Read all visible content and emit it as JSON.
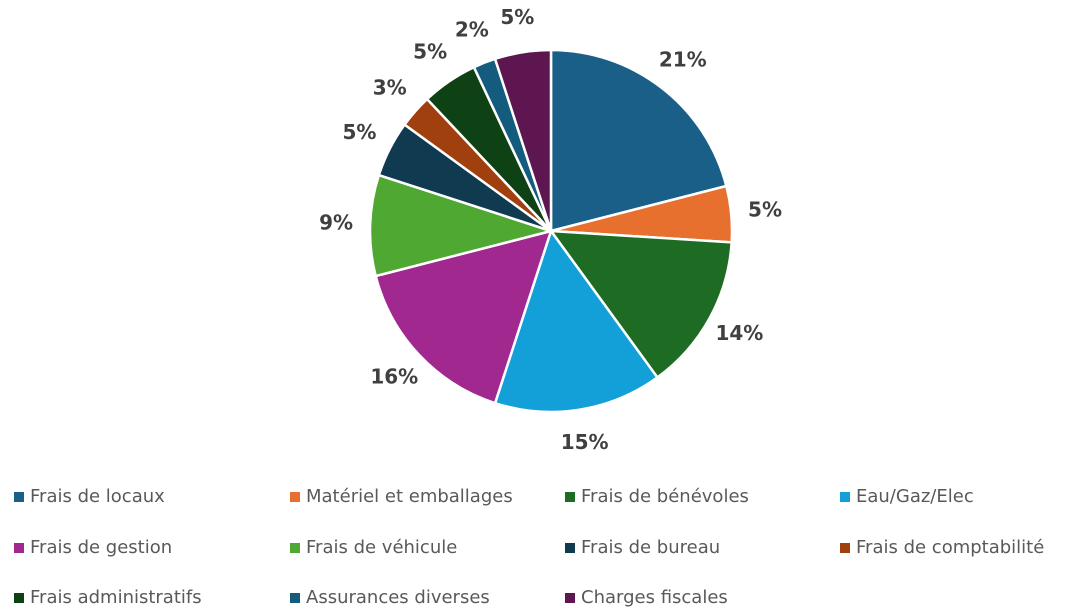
{
  "chart_data": {
    "type": "pie",
    "categories": [
      "Frais de locaux",
      "Matériel et emballages",
      "Frais de bénévoles",
      "Eau/Gaz/Elec",
      "Frais de gestion",
      "Frais de véhicule",
      "Frais de bureau",
      "Frais de comptabilité",
      "Frais administratifs",
      "Assurances diverses",
      "Charges fiscales"
    ],
    "values": [
      21,
      5,
      14,
      15,
      16,
      9,
      5,
      3,
      5,
      2,
      5
    ],
    "value_labels": [
      "21%",
      "5%",
      "14%",
      "15%",
      "16%",
      "9%",
      "5%",
      "3%",
      "5%",
      "2%",
      "5%"
    ],
    "colors": [
      "#1a5f88",
      "#e8702f",
      "#1e6b24",
      "#13a0d8",
      "#a0288e",
      "#4fa832",
      "#0f3a50",
      "#a0400e",
      "#0e4214",
      "#135c7d",
      "#5e1650"
    ],
    "legend": "bottom"
  }
}
